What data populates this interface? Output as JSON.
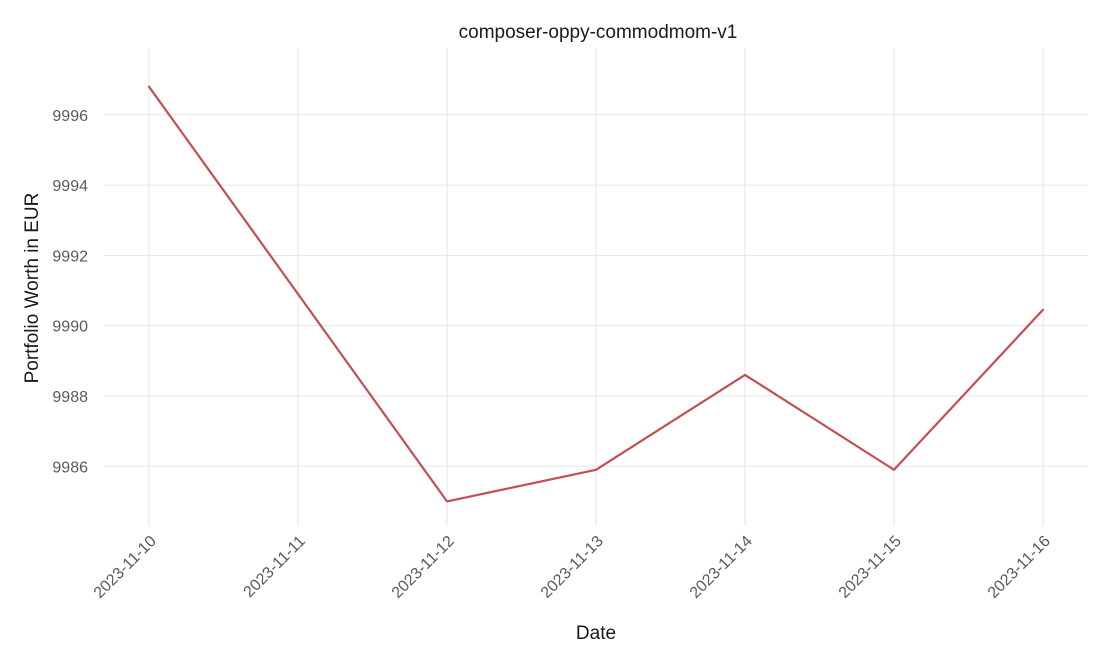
{
  "chart_data": {
    "type": "line",
    "title": "composer-oppy-commodmom-v1",
    "xlabel": "Date",
    "ylabel": "Portfolio Worth in EUR",
    "x": [
      "2023-11-10",
      "2023-11-11",
      "2023-11-12",
      "2023-11-13",
      "2023-11-14",
      "2023-11-15",
      "2023-11-16"
    ],
    "series": [
      {
        "values": [
          9996.8,
          9990.9,
          9985.0,
          9985.9,
          9988.6,
          9985.9,
          9990.45
        ],
        "color": "#c44e52"
      }
    ],
    "yticks": [
      9986,
      9988,
      9990,
      9992,
      9994,
      9996
    ],
    "ylim": [
      9984.3,
      9997.9
    ],
    "grid": true,
    "legend": "none"
  }
}
